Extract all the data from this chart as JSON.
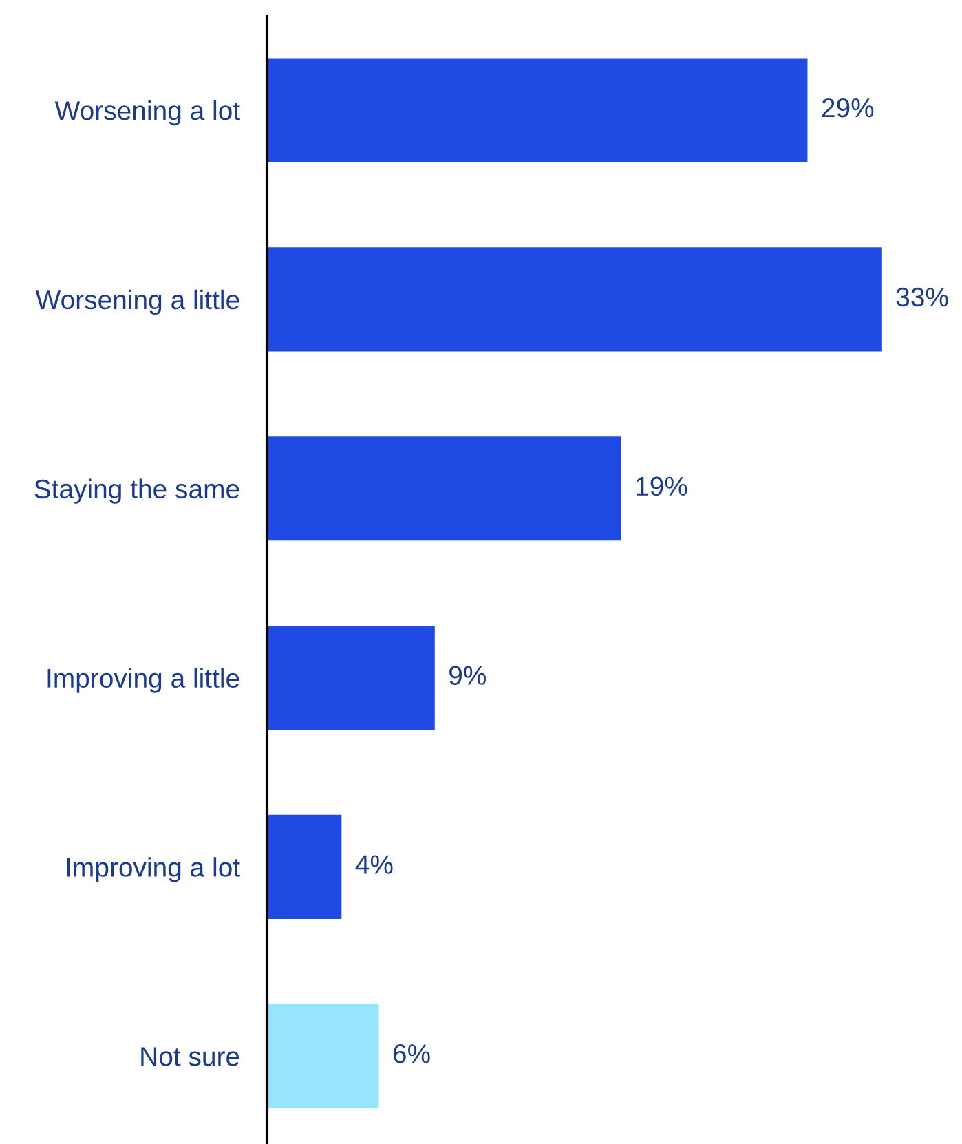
{
  "chart_data": {
    "type": "bar",
    "orientation": "horizontal",
    "categories": [
      "Worsening a lot",
      "Worsening a little",
      "Staying the same",
      "Improving a little",
      "Improving a lot",
      "Not sure"
    ],
    "values": [
      29,
      33,
      19,
      9,
      4,
      6
    ],
    "colors": [
      "#1f4ae3",
      "#1f4ae3",
      "#1f4ae3",
      "#1f4ae3",
      "#1f4ae3",
      "#96e4fd"
    ],
    "value_labels": [
      "29%",
      "33%",
      "19%",
      "9%",
      "4%",
      "6%"
    ],
    "tick_labels": "y"
  }
}
